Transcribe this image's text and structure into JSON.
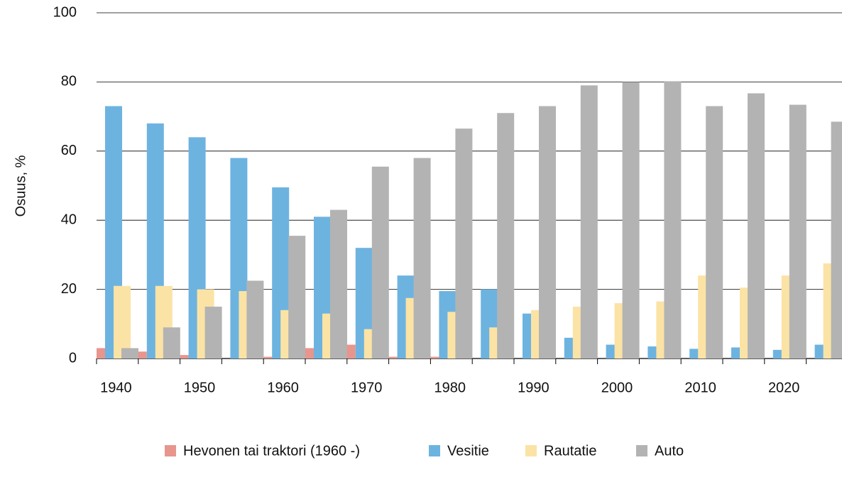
{
  "chart_data": {
    "type": "bar",
    "y_label": "Osuus, %",
    "categories": [
      "1940",
      null,
      "1950",
      null,
      "1960",
      null,
      "1970",
      null,
      "1980",
      null,
      "1990",
      null,
      "2000",
      null,
      "2010",
      null,
      "2020",
      null
    ],
    "series": [
      {
        "name": "Hevonen tai traktori (1960 -)",
        "color": "#e8958d",
        "values": [
          3,
          2,
          1,
          0,
          0.5,
          3,
          4,
          0.5,
          0.5,
          0,
          0,
          0,
          0,
          0,
          0,
          0,
          0,
          0
        ]
      },
      {
        "name": "Vesitie",
        "color": "#6db3e0",
        "values": [
          73,
          68,
          64,
          58,
          49.5,
          41,
          32,
          24,
          19.5,
          20,
          13,
          6,
          4,
          3.5,
          2.8,
          3.2,
          2.5,
          4
        ]
      },
      {
        "name": "Rautatie",
        "color": "#fbe3a5",
        "values": [
          21,
          21,
          20,
          19.5,
          14,
          13,
          8.5,
          17.5,
          13.5,
          9,
          14,
          15,
          16,
          16.5,
          24,
          20.5,
          24,
          27.5
        ]
      },
      {
        "name": "Auto",
        "color": "#b3b3b3",
        "values": [
          3,
          9,
          15,
          22.5,
          35.5,
          43,
          55.5,
          58,
          66.5,
          71,
          73,
          79,
          80,
          80.2,
          73,
          76.7,
          73.4,
          68.5
        ]
      }
    ],
    "ylim": [
      0,
      100
    ],
    "yticks": [
      0,
      20,
      40,
      60,
      80,
      100
    ],
    "grid": true
  }
}
